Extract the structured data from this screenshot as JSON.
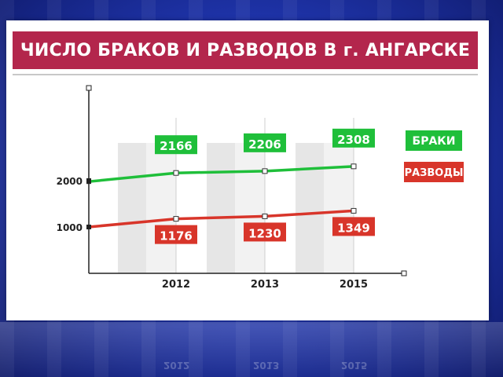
{
  "title": "ЧИСЛО БРАКОВ И РАЗВОДОВ В г. АНГАРСКЕ",
  "chart_data": {
    "type": "line",
    "categories": [
      "2012",
      "2013",
      "2015"
    ],
    "yticks": [
      "1000",
      "2000"
    ],
    "ylim": [
      0,
      3600
    ],
    "series": [
      {
        "name": "БРАКИ",
        "color": "#1fbf3a",
        "values": [
          2166,
          2206,
          2308
        ],
        "labels": [
          "2166",
          "2206",
          "2308"
        ],
        "start_value": 1980
      },
      {
        "name": "РАЗВОДЫ",
        "color": "#d8352a",
        "values": [
          1176,
          1230,
          1349
        ],
        "labels": [
          "1176",
          "1230",
          "1349"
        ],
        "start_value": 1000
      }
    ],
    "legend": "right",
    "grid": false
  }
}
